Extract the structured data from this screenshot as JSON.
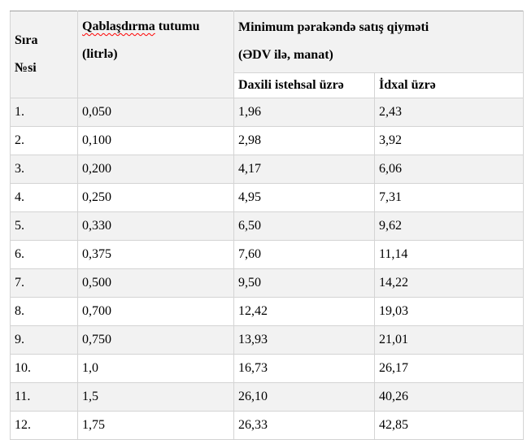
{
  "document": {
    "table": {
      "headers": {
        "row_no": "Sıra\n№si",
        "capacity_word_misspelled": "Qablaşdırma",
        "capacity_rest": " tutumu",
        "capacity_line2": "(litrlə)",
        "price_group": "Minimum pərakəndə satış qiyməti\n(ƏDV ilə, manat)",
        "domestic": "Daxili istehsal üzrə",
        "import": "İdxal üzrə"
      },
      "rows": [
        {
          "no": "1.",
          "capacity": "0,050",
          "domestic": "1,96",
          "import": "2,43"
        },
        {
          "no": "2.",
          "capacity": "0,100",
          "domestic": "2,98",
          "import": "3,92"
        },
        {
          "no": "3.",
          "capacity": "0,200",
          "domestic": "4,17",
          "import": "6,06"
        },
        {
          "no": "4.",
          "capacity": "0,250",
          "domestic": "4,95",
          "import": "7,31"
        },
        {
          "no": "5.",
          "capacity": "0,330",
          "domestic": "6,50",
          "import": "9,62"
        },
        {
          "no": "6.",
          "capacity": "0,375",
          "domestic": "7,60",
          "import": "11,14"
        },
        {
          "no": "7.",
          "capacity": "0,500",
          "domestic": "9,50",
          "import": "14,22"
        },
        {
          "no": "8.",
          "capacity": "0,700",
          "domestic": "12,42",
          "import": "19,03"
        },
        {
          "no": "9.",
          "capacity": "0,750",
          "domestic": "13,93",
          "import": "21,01"
        },
        {
          "no": "10.",
          "capacity": "1,0",
          "domestic": "16,73",
          "import": "26,17"
        },
        {
          "no": "11.",
          "capacity": "1,5",
          "domestic": "26,10",
          "import": "40,26"
        },
        {
          "no": "12.",
          "capacity": "1,75",
          "domestic": "26,33",
          "import": "42,85"
        }
      ],
      "colors": {
        "header_fill": "#f2f2f2",
        "alt_row_fill": "#f2f2f2",
        "grid_border": "#d4d4d4",
        "outer_top_border": "#a0a0a0",
        "spellcheck_underline": "#ff0000",
        "text": "#000000"
      }
    }
  }
}
